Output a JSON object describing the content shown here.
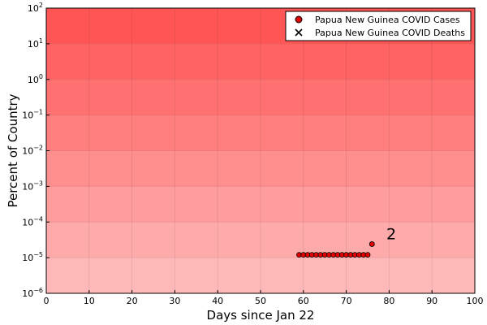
{
  "chart_data": {
    "type": "scatter",
    "title": "",
    "xlabel": "Days since Jan 22",
    "ylabel": "Percent of Country",
    "xlim": [
      0,
      100
    ],
    "ylim": [
      1e-06,
      100
    ],
    "yscale": "log",
    "x_ticks": [
      0,
      10,
      20,
      30,
      40,
      50,
      60,
      70,
      80,
      90,
      100
    ],
    "y_ticks": [
      {
        "exp": -6,
        "base": "10",
        "label": "−6"
      },
      {
        "exp": -5,
        "base": "10",
        "label": "−5"
      },
      {
        "exp": -4,
        "base": "10",
        "label": "−4"
      },
      {
        "exp": -3,
        "base": "10",
        "label": "−3"
      },
      {
        "exp": -2,
        "base": "10",
        "label": "−2"
      },
      {
        "exp": -1,
        "base": "10",
        "label": "−1"
      },
      {
        "exp": 0,
        "base": "10",
        "label": "0"
      },
      {
        "exp": 1,
        "base": "10",
        "label": "1"
      },
      {
        "exp": 2,
        "base": "10",
        "label": "2"
      }
    ],
    "grid": true,
    "legend_position": "top-right",
    "background": "red bands, darker toward the top",
    "colors": {
      "band": "#ff0000",
      "cases_marker": "#e20000",
      "marker_edge": "#000000",
      "deaths_marker": "#000000"
    },
    "series": [
      {
        "name": "Papua New Guinea COVID Cases",
        "marker": "circle",
        "x": [
          59,
          60,
          61,
          62,
          63,
          64,
          65,
          66,
          67,
          68,
          69,
          70,
          71,
          72,
          73,
          74,
          75,
          76
        ],
        "y": [
          1.2e-05,
          1.2e-05,
          1.2e-05,
          1.2e-05,
          1.2e-05,
          1.2e-05,
          1.2e-05,
          1.2e-05,
          1.2e-05,
          1.2e-05,
          1.2e-05,
          1.2e-05,
          1.2e-05,
          1.2e-05,
          1.2e-05,
          1.2e-05,
          1.2e-05,
          2.4e-05
        ]
      },
      {
        "name": "Papua New Guinea COVID Deaths",
        "marker": "x",
        "x": [],
        "y": []
      }
    ],
    "annotations": [
      {
        "text": "2",
        "x": 80.5,
        "y": 4.5e-05
      }
    ]
  }
}
